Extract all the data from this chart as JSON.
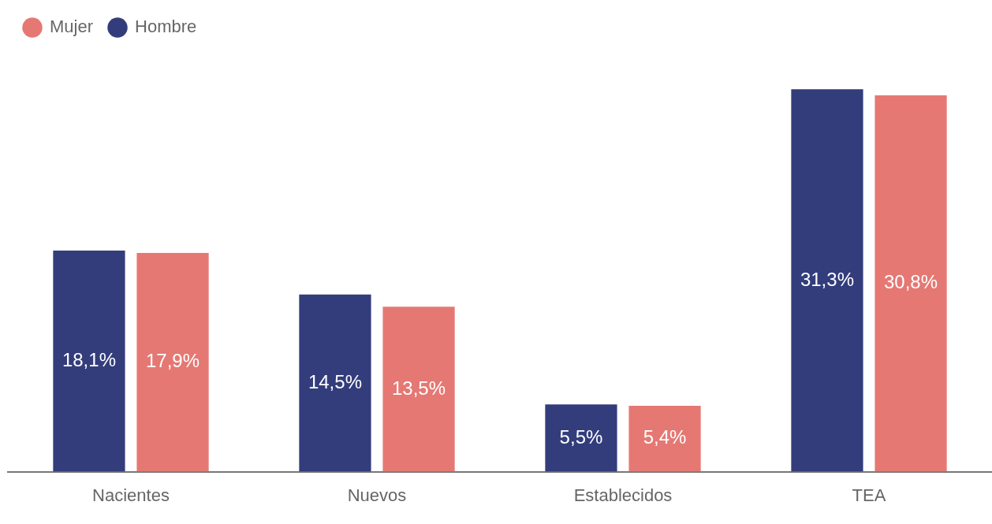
{
  "chart_data": {
    "type": "bar",
    "categories": [
      "Nacientes",
      "Nuevos",
      "Establecidos",
      "TEA"
    ],
    "series": [
      {
        "name": "Hombre",
        "color": "#333d7c",
        "values": [
          18.1,
          14.5,
          5.5,
          31.3
        ],
        "value_labels": [
          "18,1%",
          "14,5%",
          "5,5%",
          "31,3%"
        ]
      },
      {
        "name": "Mujer",
        "color": "#e57873",
        "values": [
          17.9,
          13.5,
          5.4,
          30.8
        ],
        "value_labels": [
          "17,9%",
          "13,5%",
          "5,4%",
          "30,8%"
        ]
      }
    ],
    "legend": "top left",
    "grid": false
  }
}
